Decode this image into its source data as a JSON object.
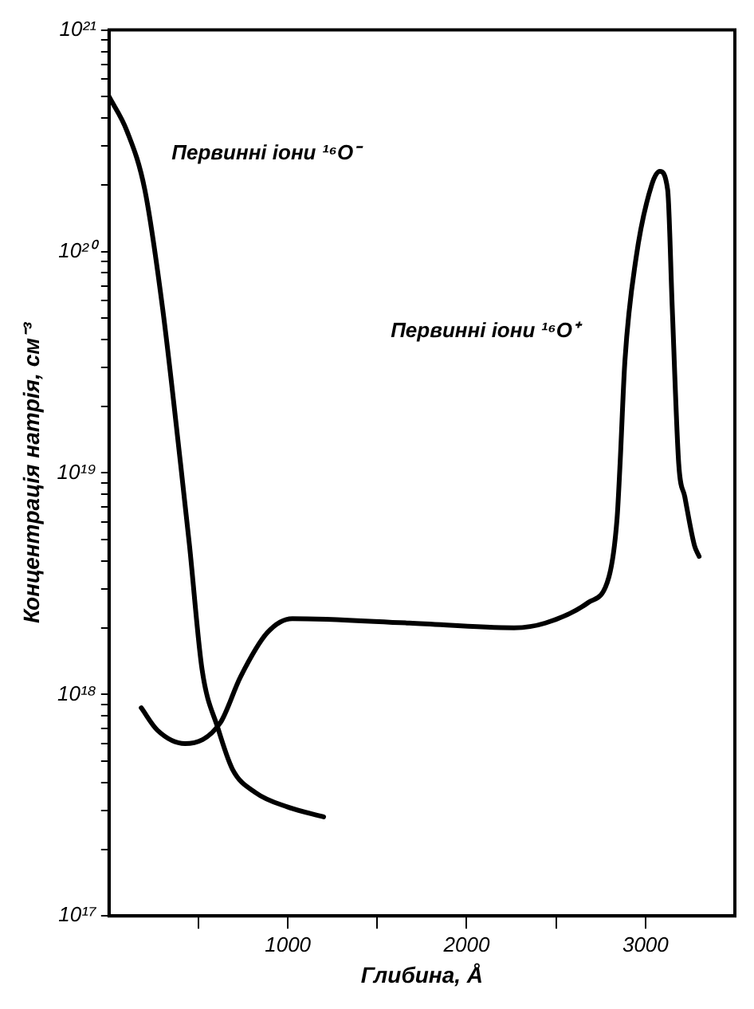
{
  "chart_data": {
    "type": "line",
    "xlabel": "Глибина, Å",
    "ylabel": "Концентрація натрія, см⁻³",
    "log": "y",
    "xlim": [
      0,
      3500
    ],
    "ylim": [
      1e+17,
      1e+21
    ],
    "xticks": [
      {
        "value": 500,
        "label": null
      },
      1000,
      {
        "value": 1500,
        "label": null
      },
      2000,
      {
        "value": 2500,
        "label": null
      },
      3000
    ],
    "yticks": [
      {
        "value": 1e+17,
        "label": "10¹⁷"
      },
      {
        "value": 2e+17,
        "label": null
      },
      {
        "value": 3e+17,
        "label": null
      },
      {
        "value": 4e+17,
        "label": null
      },
      {
        "value": 5e+17,
        "label": null
      },
      {
        "value": 6e+17,
        "label": null
      },
      {
        "value": 7e+17,
        "label": null
      },
      {
        "value": 8e+17,
        "label": null
      },
      {
        "value": 9e+17,
        "label": null
      },
      {
        "value": 1e+18,
        "label": "10¹⁸"
      },
      {
        "value": 2e+18,
        "label": null
      },
      {
        "value": 3e+18,
        "label": null
      },
      {
        "value": 4e+18,
        "label": null
      },
      {
        "value": 5e+18,
        "label": null
      },
      {
        "value": 6e+18,
        "label": null
      },
      {
        "value": 7e+18,
        "label": null
      },
      {
        "value": 8e+18,
        "label": null
      },
      {
        "value": 9e+18,
        "label": null
      },
      {
        "value": 1e+19,
        "label": "10¹⁹"
      },
      {
        "value": 2e+19,
        "label": null
      },
      {
        "value": 3e+19,
        "label": null
      },
      {
        "value": 4e+19,
        "label": null
      },
      {
        "value": 5e+19,
        "label": null
      },
      {
        "value": 6e+19,
        "label": null
      },
      {
        "value": 7e+19,
        "label": null
      },
      {
        "value": 8e+19,
        "label": null
      },
      {
        "value": 9e+19,
        "label": null
      },
      {
        "value": 1e+20,
        "label": "10²⁰"
      },
      {
        "value": 2e+20,
        "label": null
      },
      {
        "value": 3e+20,
        "label": null
      },
      {
        "value": 4e+20,
        "label": null
      },
      {
        "value": 5e+20,
        "label": null
      },
      {
        "value": 6e+20,
        "label": null
      },
      {
        "value": 7e+20,
        "label": null
      },
      {
        "value": 8e+20,
        "label": null
      },
      {
        "value": 9e+20,
        "label": null
      },
      {
        "value": 1e+21,
        "label": "10²¹"
      }
    ],
    "grid": false,
    "legend": false,
    "marker": "none",
    "line_style": "solid",
    "series": [
      {
        "name": "Первинні іони ¹⁶O⁻",
        "color": "#000000",
        "x": [
          0,
          100,
          200,
          300,
          400,
          450,
          520,
          610,
          690,
          820,
          1000,
          1200
        ],
        "values": [
          5e+20,
          3.5e+20,
          1.9e+20,
          5.5e+19,
          1.1e+19,
          4.7e+18,
          1.3e+18,
          7e+17,
          4.6e+17,
          3.6e+17,
          3.1e+17,
          2.8e+17
        ]
      },
      {
        "name": "Первинні іони ¹⁶O⁺",
        "color": "#000000",
        "x": [
          180,
          270,
          425,
          620,
          735,
          885,
          1025,
          1680,
          2265,
          2440,
          2680,
          2796,
          2841,
          2858,
          2885,
          2947,
          3035,
          3080,
          3124,
          3150,
          3186,
          3220,
          3274,
          3300
        ],
        "values": [
          8.7e+17,
          6.9e+17,
          6e+17,
          7.4e+17,
          1.2e+18,
          1.9e+18,
          2.2e+18,
          2.1e+18,
          2e+18,
          2.1e+18,
          2.6e+18,
          3.4e+18,
          6.2e+18,
          1.1e+19,
          3.2e+19,
          9.3e+19,
          2e+20,
          2.3e+20,
          1.9e+20,
          5.5e+19,
          1.1e+19,
          7.8e+18,
          4.7e+18,
          4.2e+18
        ]
      }
    ]
  }
}
